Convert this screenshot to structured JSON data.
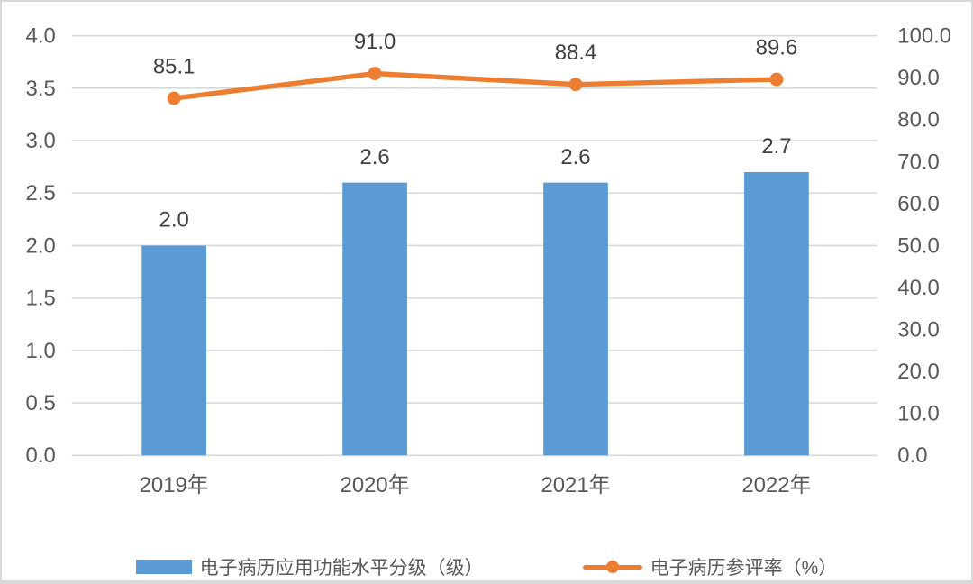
{
  "chart_data": {
    "type": "combo",
    "categories": [
      "2019年",
      "2020年",
      "2021年",
      "2022年"
    ],
    "series": [
      {
        "name": "电子病历应用功能水平分级（级）",
        "type": "bar",
        "axis": "left",
        "color": "#5B9BD5",
        "values": [
          2.0,
          2.6,
          2.6,
          2.7
        ],
        "labels": [
          "2.0",
          "2.6",
          "2.6",
          "2.7"
        ]
      },
      {
        "name": "电子病历参评率（%）",
        "type": "line",
        "axis": "right",
        "color": "#ED7D31",
        "values": [
          85.1,
          91.0,
          88.4,
          89.6
        ],
        "labels": [
          "85.1",
          "91.0",
          "88.4",
          "89.6"
        ]
      }
    ],
    "axes": {
      "left": {
        "min": 0,
        "max": 4,
        "step": 0.5,
        "ticks": [
          "4.0",
          "3.5",
          "3.0",
          "2.5",
          "2.0",
          "1.5",
          "1.0",
          "0.5",
          "0.0"
        ]
      },
      "right": {
        "min": 0,
        "max": 100,
        "step": 10,
        "ticks": [
          "100.0",
          "90.0",
          "80.0",
          "70.0",
          "60.0",
          "50.0",
          "40.0",
          "30.0",
          "20.0",
          "10.0",
          "0.0"
        ]
      }
    },
    "title": "",
    "xlabel": "",
    "ylabel": "",
    "grid": true,
    "legend_position": "bottom",
    "colors": {
      "bar": "#5B9BD5",
      "line": "#ED7D31",
      "grid": "#D9D9D9",
      "tick_text": "#595959",
      "label_text": "#404040",
      "border": "#D9D9D9",
      "background": "#FFFFFF"
    }
  }
}
